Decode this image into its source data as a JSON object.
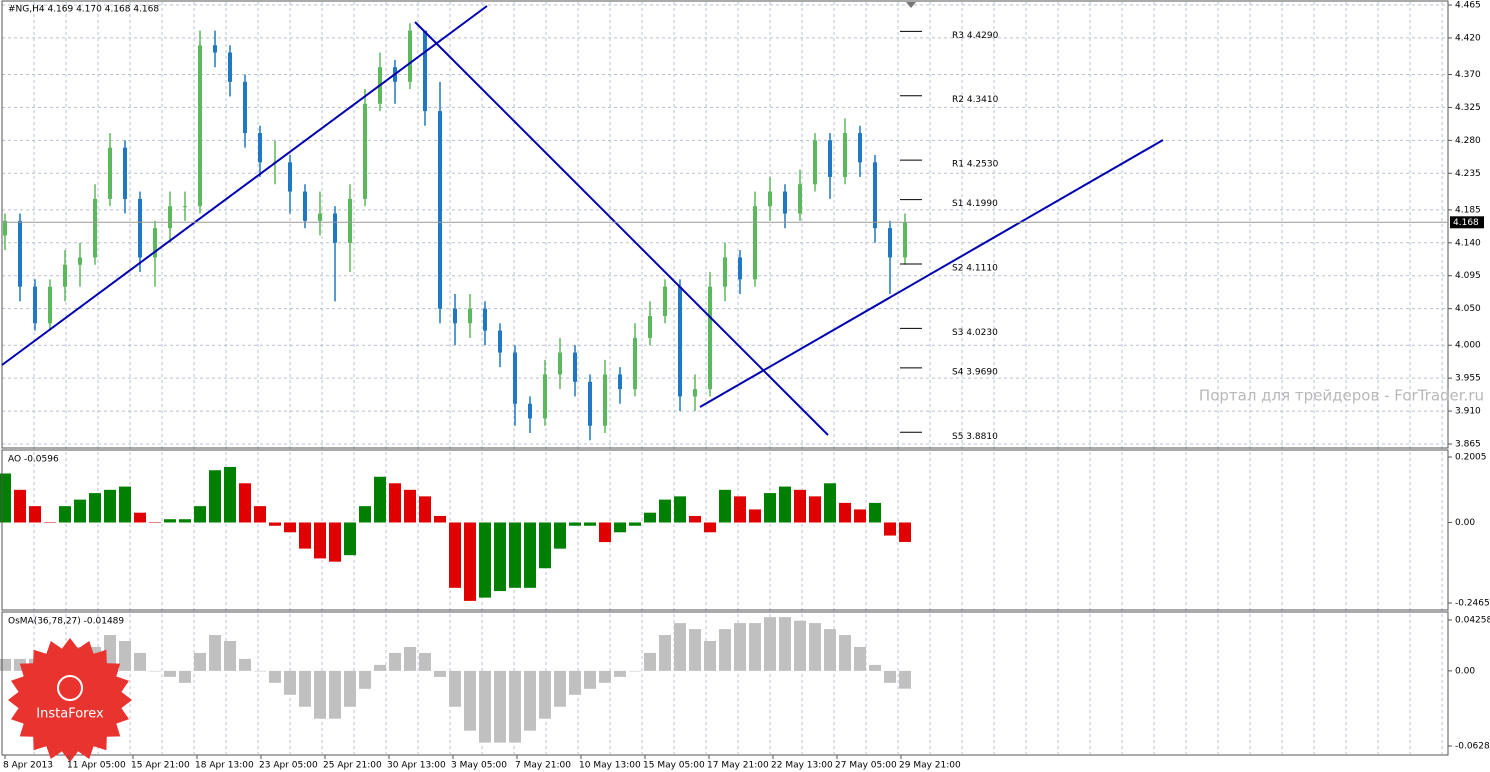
{
  "chart_data": [
    {
      "type": "candlestick",
      "title": "#NG,H4  4.169 4.170 4.168 4.168",
      "up_color": "#5cb85c",
      "down_color": "#1f78c1",
      "ylim": [
        3.865,
        4.465
      ],
      "yticks": [
        4.465,
        {
          "value": 4.42,
          "label": "4.420"
        },
        {
          "value": 4.37,
          "label": "4.370"
        },
        4.325,
        {
          "value": 4.28,
          "label": "4.280"
        },
        4.235,
        4.185,
        {
          "value": 4.14,
          "label": "4.140"
        },
        4.095,
        {
          "value": 4.05,
          "label": "4.050"
        },
        {
          "value": 4.0,
          "label": "4.000"
        },
        3.955,
        {
          "value": 3.91,
          "label": "3.910"
        },
        3.865
      ],
      "grid": true,
      "last": 4.168,
      "candles": [
        [
          4.15,
          4.18,
          4.13,
          4.17
        ],
        [
          4.17,
          4.18,
          4.06,
          4.08
        ],
        [
          4.08,
          4.09,
          4.02,
          4.03
        ],
        [
          4.03,
          4.09,
          4.02,
          4.08
        ],
        [
          4.08,
          4.13,
          4.06,
          4.11
        ],
        [
          4.11,
          4.14,
          4.08,
          4.12
        ],
        [
          4.12,
          4.22,
          4.11,
          4.2
        ],
        [
          4.2,
          4.29,
          4.19,
          4.27
        ],
        [
          4.27,
          4.28,
          4.18,
          4.2
        ],
        [
          4.2,
          4.21,
          4.1,
          4.12
        ],
        [
          4.12,
          4.17,
          4.08,
          4.16
        ],
        [
          4.16,
          4.21,
          4.14,
          4.19
        ],
        [
          4.19,
          4.21,
          4.17,
          4.19
        ],
        [
          4.19,
          4.43,
          4.18,
          4.41
        ],
        [
          4.41,
          4.43,
          4.38,
          4.4
        ],
        [
          4.4,
          4.41,
          4.34,
          4.36
        ],
        [
          4.36,
          4.37,
          4.27,
          4.29
        ],
        [
          4.29,
          4.3,
          4.23,
          4.25
        ],
        [
          4.25,
          4.28,
          4.22,
          4.25
        ],
        [
          4.25,
          4.26,
          4.18,
          4.21
        ],
        [
          4.21,
          4.22,
          4.16,
          4.17
        ],
        [
          4.17,
          4.21,
          4.15,
          4.18
        ],
        [
          4.18,
          4.19,
          4.06,
          4.14
        ],
        [
          4.14,
          4.22,
          4.1,
          4.2
        ],
        [
          4.2,
          4.35,
          4.19,
          4.33
        ],
        [
          4.33,
          4.4,
          4.32,
          4.38
        ],
        [
          4.38,
          4.39,
          4.33,
          4.36
        ],
        [
          4.36,
          4.44,
          4.35,
          4.43
        ],
        [
          4.43,
          4.43,
          4.3,
          4.32
        ],
        [
          4.32,
          4.36,
          4.03,
          4.05
        ],
        [
          4.05,
          4.07,
          4.0,
          4.03
        ],
        [
          4.03,
          4.07,
          4.01,
          4.05
        ],
        [
          4.05,
          4.06,
          4.0,
          4.02
        ],
        [
          4.02,
          4.03,
          3.97,
          3.99
        ],
        [
          3.99,
          4.0,
          3.89,
          3.92
        ],
        [
          3.92,
          3.93,
          3.88,
          3.9
        ],
        [
          3.9,
          3.98,
          3.89,
          3.96
        ],
        [
          3.96,
          4.01,
          3.94,
          3.99
        ],
        [
          3.99,
          4.0,
          3.93,
          3.95
        ],
        [
          3.95,
          3.96,
          3.87,
          3.89
        ],
        [
          3.89,
          3.98,
          3.88,
          3.96
        ],
        [
          3.96,
          3.97,
          3.92,
          3.94
        ],
        [
          3.94,
          4.03,
          3.93,
          4.01
        ],
        [
          4.01,
          4.06,
          4.0,
          4.04
        ],
        [
          4.04,
          4.09,
          4.03,
          4.08
        ],
        [
          4.08,
          4.09,
          3.91,
          3.93
        ],
        [
          3.93,
          3.96,
          3.91,
          3.94
        ],
        [
          3.94,
          4.1,
          3.93,
          4.08
        ],
        [
          4.08,
          4.14,
          4.06,
          4.12
        ],
        [
          4.12,
          4.13,
          4.07,
          4.09
        ],
        [
          4.09,
          4.21,
          4.08,
          4.19
        ],
        [
          4.19,
          4.23,
          4.17,
          4.21
        ],
        [
          4.21,
          4.22,
          4.16,
          4.18
        ],
        [
          4.18,
          4.24,
          4.17,
          4.22
        ],
        [
          4.22,
          4.29,
          4.21,
          4.28
        ],
        [
          4.28,
          4.29,
          4.2,
          4.23
        ],
        [
          4.23,
          4.31,
          4.22,
          4.29
        ],
        [
          4.29,
          4.3,
          4.23,
          4.25
        ],
        [
          4.25,
          4.26,
          4.14,
          4.16
        ],
        [
          4.16,
          4.17,
          4.07,
          4.12
        ],
        [
          4.12,
          4.18,
          4.11,
          4.168
        ]
      ],
      "pivots": [
        {
          "label": "R3 4.4290",
          "value": 4.429
        },
        {
          "label": "R2 4.3410",
          "value": 4.341
        },
        {
          "label": "R1 4.2530",
          "value": 4.253
        },
        {
          "label": "S1 4.1990",
          "value": 4.199
        },
        {
          "label": "S2 4.1110",
          "value": 4.111
        },
        {
          "label": "S3 4.0230",
          "value": 4.023
        },
        {
          "label": "S4 3.9690",
          "value": 3.969
        },
        {
          "label": "S5 3.8810",
          "value": 3.881
        }
      ],
      "time_labels": [
        "8 Apr 2013",
        "11 Apr 05:00",
        "15 Apr 21:00",
        "18 Apr 13:00",
        "23 Apr 05:00",
        "25 Apr 21:00",
        "30 Apr 13:00",
        "3 May 05:00",
        "7 May 21:00",
        "10 May 13:00",
        "15 May 05:00",
        "17 May 21:00",
        "22 May 13:00",
        "27 May 05:00",
        "29 May 21:00"
      ],
      "watermark": "Портал для трейдеров - ForTrader.ru",
      "logo": "InstaForex"
    },
    {
      "type": "bar",
      "title": "AO -0.0596",
      "up_color": "#008000",
      "down_color": "#e00000",
      "ylim": [
        -0.2465,
        0.2005
      ],
      "yticks": [
        0.2005,
        {
          "value": 0,
          "label": "0.00"
        },
        -0.2465
      ],
      "values": [
        0.15,
        0.1,
        0.05,
        0.0,
        0.05,
        0.07,
        0.09,
        0.1,
        0.11,
        0.03,
        0.0,
        0.01,
        0.01,
        0.05,
        0.16,
        0.17,
        0.12,
        0.05,
        -0.01,
        -0.03,
        -0.08,
        -0.11,
        -0.12,
        -0.1,
        0.05,
        0.14,
        0.12,
        0.1,
        0.08,
        0.02,
        -0.2,
        -0.24,
        -0.23,
        -0.21,
        -0.2,
        -0.2,
        -0.14,
        -0.08,
        -0.01,
        -0.01,
        -0.06,
        -0.03,
        -0.01,
        0.03,
        0.07,
        0.08,
        0.02,
        -0.03,
        0.1,
        0.08,
        0.04,
        0.09,
        0.11,
        0.1,
        0.08,
        0.12,
        0.06,
        0.04,
        0.06,
        -0.04,
        -0.0596
      ]
    },
    {
      "type": "bar",
      "title": "OsMA(36,78,27) -0.01489",
      "color": "#c0c0c0",
      "ylim": [
        -0.06285,
        0.04258
      ],
      "yticks": [
        0.04258,
        {
          "value": 0,
          "label": "0.00"
        },
        -0.06285
      ],
      "values": [
        0.01,
        0.01,
        0.01,
        0.01,
        0.015,
        0.02,
        0.02,
        0.03,
        0.025,
        0.015,
        0.0,
        -0.005,
        -0.01,
        0.015,
        0.03,
        0.025,
        0.01,
        0.0,
        -0.01,
        -0.02,
        -0.03,
        -0.04,
        -0.04,
        -0.03,
        -0.015,
        0.005,
        0.015,
        0.02,
        0.015,
        -0.005,
        -0.03,
        -0.05,
        -0.06,
        -0.06,
        -0.06,
        -0.05,
        -0.04,
        -0.03,
        -0.02,
        -0.015,
        -0.01,
        -0.005,
        0.0,
        0.015,
        0.03,
        0.04,
        0.035,
        0.025,
        0.035,
        0.04,
        0.04,
        0.045,
        0.045,
        0.042,
        0.04,
        0.035,
        0.03,
        0.02,
        0.005,
        -0.01,
        -0.01489
      ]
    }
  ]
}
